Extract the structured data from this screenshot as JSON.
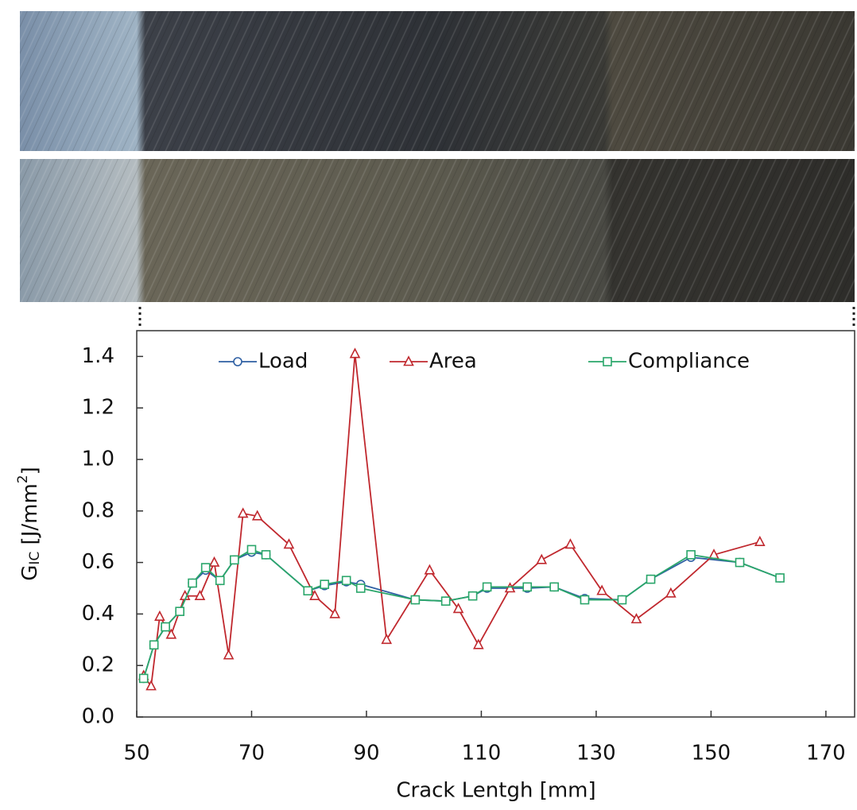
{
  "chart_data": {
    "type": "line",
    "xlabel": "Crack Lentgh [mm]",
    "ylabel": [
      "G",
      "IC",
      " [J/mm",
      "2",
      "]"
    ],
    "xlim": [
      50,
      175
    ],
    "ylim": [
      0,
      1.5
    ],
    "xticks": [
      50,
      70,
      90,
      110,
      130,
      150,
      170
    ],
    "yticks": [
      {
        "value": 0,
        "label": "0.0"
      },
      0.2,
      0.4,
      0.6,
      0.8,
      {
        "value": 1,
        "label": "1.0"
      },
      1.2,
      1.4
    ],
    "legend": "top",
    "series": [
      {
        "name": "Load",
        "color": "#2e5fa3",
        "marker": "circle",
        "x": [
          51.2,
          53,
          55,
          57.5,
          59.7,
          62,
          64.5,
          67,
          70,
          72.5,
          79.8,
          82.7,
          86.5,
          89,
          98.5,
          103.8,
          108.5,
          111,
          118,
          122.7,
          128,
          134.5,
          139.5,
          146.5,
          155,
          162
        ],
        "values": [
          0.15,
          0.28,
          0.35,
          0.41,
          0.52,
          0.57,
          0.53,
          0.61,
          0.64,
          0.63,
          0.49,
          0.51,
          0.525,
          0.515,
          0.455,
          0.45,
          0.47,
          0.5,
          0.5,
          0.505,
          0.46,
          0.455,
          0.535,
          0.62,
          0.6,
          0.54
        ]
      },
      {
        "name": "Area",
        "color": "#c0282e",
        "marker": "triangle",
        "x": [
          51.2,
          52.5,
          54,
          56,
          58.4,
          61,
          63.5,
          66,
          68.5,
          71,
          76.5,
          81,
          84.5,
          88,
          93.5,
          101,
          106,
          109.5,
          115,
          120.5,
          125.5,
          131,
          137,
          143,
          150.5,
          158.5
        ],
        "values": [
          0.16,
          0.12,
          0.39,
          0.32,
          0.47,
          0.47,
          0.6,
          0.24,
          0.79,
          0.78,
          0.67,
          0.47,
          0.4,
          1.41,
          0.3,
          0.57,
          0.42,
          0.28,
          0.5,
          0.61,
          0.67,
          0.49,
          0.38,
          0.48,
          0.63,
          0.68
        ]
      },
      {
        "name": "Compliance",
        "color": "#2aa66a",
        "marker": "square",
        "x": [
          51.2,
          53,
          55,
          57.5,
          59.7,
          62,
          64.5,
          67,
          70,
          72.5,
          79.8,
          82.7,
          86.5,
          89,
          98.5,
          103.8,
          108.5,
          111,
          118,
          122.7,
          128,
          134.5,
          139.5,
          146.5,
          155,
          162
        ],
        "values": [
          0.15,
          0.28,
          0.35,
          0.41,
          0.52,
          0.58,
          0.53,
          0.61,
          0.65,
          0.63,
          0.49,
          0.515,
          0.53,
          0.5,
          0.455,
          0.45,
          0.47,
          0.505,
          0.505,
          0.505,
          0.455,
          0.455,
          0.535,
          0.63,
          0.6,
          0.54
        ]
      }
    ]
  }
}
